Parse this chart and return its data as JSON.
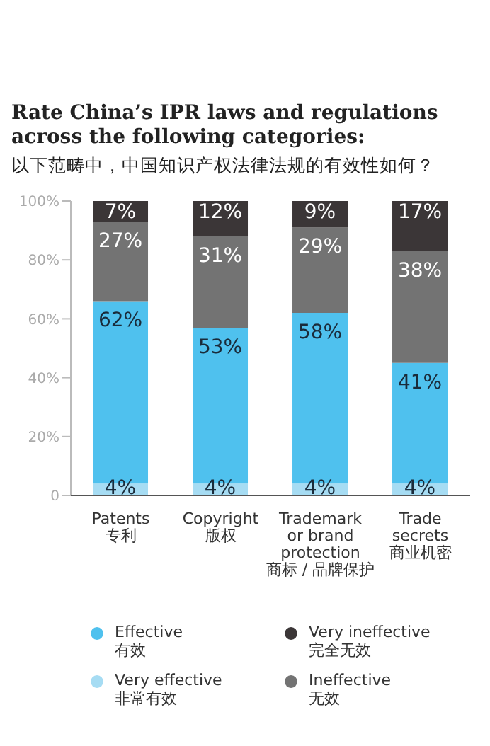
{
  "chart_data": {
    "type": "bar",
    "stacked": true,
    "title": "Rate China’s IPR laws and regulations across the following categories:",
    "subtitle": "以下范畴中，中国知识产权法律法规的有效性如何？",
    "categories": [
      "Patents\n专利",
      "Copyright\n版权",
      "Trademark\nor brand\nprotection\n商标 / 品牌保护",
      "Trade\nsecrets\n商业机密"
    ],
    "series": [
      {
        "name": "Very effective\n非常有效",
        "color": "#a6dcf3",
        "values": [
          4,
          4,
          4,
          4
        ],
        "value_labels": [
          "4%",
          "4%",
          "4%",
          "4%"
        ]
      },
      {
        "name": "Effective\n有效",
        "color": "#4fc1ee",
        "values": [
          62,
          53,
          58,
          41
        ],
        "value_labels": [
          "62%",
          "53%",
          "58%",
          "41%"
        ]
      },
      {
        "name": "Ineffective\n无效",
        "color": "#737373",
        "values": [
          27,
          31,
          29,
          38
        ],
        "value_labels": [
          "27%",
          "31%",
          "29%",
          "38%"
        ]
      },
      {
        "name": "Very ineffective\n完全无效",
        "color": "#3b3637",
        "values": [
          7,
          12,
          9,
          17
        ],
        "value_labels": [
          "7%",
          "12%",
          "9%",
          "17%"
        ]
      }
    ],
    "ylim": [
      0,
      100
    ],
    "yticks": [
      0,
      {
        "value": 20,
        "label": "20%"
      },
      {
        "value": 40,
        "label": "40%"
      },
      {
        "value": 60,
        "label": "60%"
      },
      {
        "value": 80,
        "label": "80%"
      },
      {
        "value": 100,
        "label": "100%"
      }
    ],
    "grid": false,
    "legend": "bottom"
  }
}
